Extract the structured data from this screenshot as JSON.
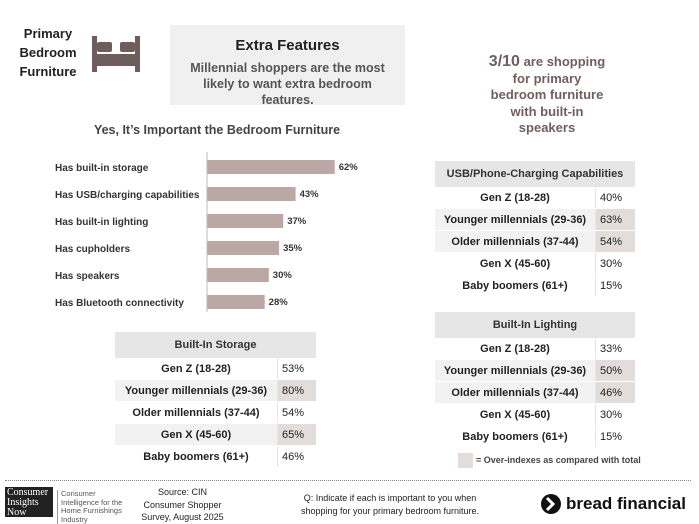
{
  "header": {
    "section": "Primary Bedroom Furniture",
    "box_title": "Extra Features",
    "box_text": "Millennial shoppers are the most likely to want extra bedroom features."
  },
  "callout": {
    "highlight": "3/10",
    "text": "are shopping for primary bedroom furniture with built-in speakers"
  },
  "chart_data": {
    "type": "bar",
    "orientation": "horizontal",
    "title": "Yes, It’s Important the Bedroom Furniture",
    "categories": [
      "Has built-in storage",
      "Has USB/charging capabilities",
      "Has built-in lighting",
      "Has cupholders",
      "Has speakers",
      "Has Bluetooth connectivity"
    ],
    "values": [
      62,
      43,
      37,
      35,
      30,
      28
    ],
    "value_labels": [
      "62%",
      "43%",
      "37%",
      "35%",
      "30%",
      "28%"
    ],
    "color": "#bba7a4",
    "xlim": [
      0,
      100
    ]
  },
  "tables": [
    {
      "title": "Built-In Storage",
      "rows": [
        [
          "Gen Z (18-28)",
          "53%"
        ],
        [
          "Younger millennials (29-36)",
          "80%"
        ],
        [
          "Older millennials (37-44)",
          "54%"
        ],
        [
          "Gen X (45-60)",
          "65%"
        ],
        [
          "Baby boomers (61+)",
          "46%"
        ]
      ],
      "highlight": [
        false,
        true,
        false,
        true,
        false
      ]
    },
    {
      "title": "USB/Phone-Charging Capabilities",
      "rows": [
        [
          "Gen Z (18-28)",
          "40%"
        ],
        [
          "Younger millennials (29-36)",
          "63%"
        ],
        [
          "Older millennials (37-44)",
          "54%"
        ],
        [
          "Gen X (45-60)",
          "30%"
        ],
        [
          "Baby boomers (61+)",
          "15%"
        ]
      ],
      "highlight": [
        false,
        true,
        true,
        false,
        false
      ]
    },
    {
      "title": "Built-In Lighting",
      "rows": [
        [
          "Gen Z (18-28)",
          "33%"
        ],
        [
          "Younger millennials (29-36)",
          "50%"
        ],
        [
          "Older millennials (37-44)",
          "46%"
        ],
        [
          "Gen X (45-60)",
          "30%"
        ],
        [
          "Baby boomers (61+)",
          "15%"
        ]
      ],
      "highlight": [
        false,
        true,
        true,
        false,
        false
      ]
    }
  ],
  "legend": "= Over-indexes as compared with total",
  "footer": {
    "logo": "Consumer Insights Now",
    "logo_text": "Consumer Intelligence for the Home Furnishings Industry",
    "source": "Source: CIN Consumer Shopper Survey, August 2025",
    "question": "Q: Indicate if each is important to you when shopping for your primary bedroom furniture.",
    "brand": "bread financial"
  }
}
